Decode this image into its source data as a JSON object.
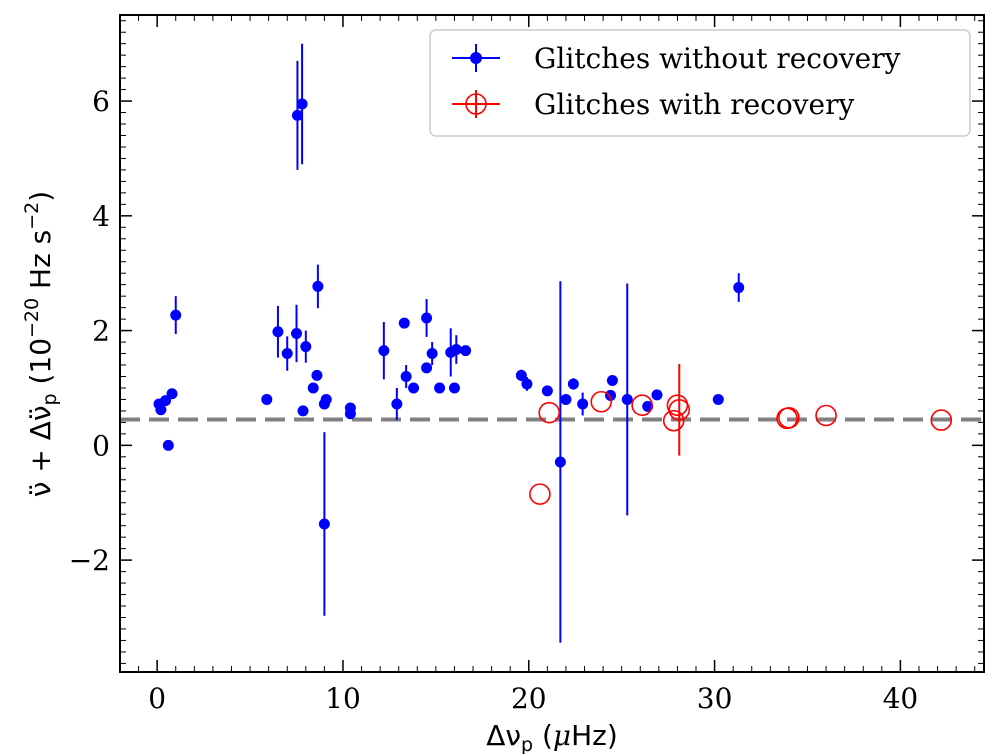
{
  "chart_data": {
    "type": "scatter",
    "title": "",
    "xlabel": "Δν_p (μHz)",
    "ylabel": "ν̈ + Δν̈_p (10^-20 Hz s^-2)",
    "xlim": [
      -2,
      44.5
    ],
    "ylim": [
      -3.95,
      7.5
    ],
    "x_ticks": [
      0,
      10,
      20,
      30,
      40
    ],
    "x_tick_labels": [
      "0",
      "10",
      "20",
      "30",
      "40"
    ],
    "y_ticks": [
      -2,
      0,
      2,
      4,
      6
    ],
    "y_tick_labels": [
      "−2",
      "0",
      "2",
      "4",
      "6"
    ],
    "reference_line": {
      "y": 0.45,
      "style": "dashed",
      "color": "#808080"
    },
    "legend": {
      "position": "top-right"
    },
    "series": [
      {
        "name": "Glitches without recovery",
        "color": "#0000ff",
        "marker": "filled-circle",
        "points": [
          {
            "x": 0.1,
            "y": 0.72,
            "err": 0
          },
          {
            "x": 0.2,
            "y": 0.62,
            "err": 0
          },
          {
            "x": 0.45,
            "y": 0.78,
            "err": 0
          },
          {
            "x": 0.6,
            "y": 0.0,
            "err": 0
          },
          {
            "x": 0.8,
            "y": 0.9,
            "err": 0
          },
          {
            "x": 1.0,
            "y": 2.27,
            "err": 0.33
          },
          {
            "x": 5.9,
            "y": 0.8,
            "err": 0
          },
          {
            "x": 6.5,
            "y": 1.98,
            "err": 0.45
          },
          {
            "x": 7.0,
            "y": 1.6,
            "err": 0.3
          },
          {
            "x": 7.5,
            "y": 1.95,
            "err": 0.5
          },
          {
            "x": 7.55,
            "y": 5.75,
            "err": 0.95
          },
          {
            "x": 7.8,
            "y": 5.95,
            "err": 1.05
          },
          {
            "x": 7.85,
            "y": 0.6,
            "err": 0
          },
          {
            "x": 8.0,
            "y": 1.72,
            "err": 0.28
          },
          {
            "x": 8.4,
            "y": 1.0,
            "err": 0
          },
          {
            "x": 8.6,
            "y": 1.22,
            "err": 0
          },
          {
            "x": 8.65,
            "y": 2.77,
            "err": 0.38
          },
          {
            "x": 9.0,
            "y": 0.72,
            "err": 0
          },
          {
            "x": 9.1,
            "y": 0.8,
            "err": 0
          },
          {
            "x": 9.0,
            "y": -1.37,
            "err": 1.6
          },
          {
            "x": 10.4,
            "y": 0.65,
            "err": 0
          },
          {
            "x": 10.4,
            "y": 0.55,
            "err": 0
          },
          {
            "x": 12.2,
            "y": 1.65,
            "err": 0.5
          },
          {
            "x": 12.9,
            "y": 0.72,
            "err": 0.28
          },
          {
            "x": 13.3,
            "y": 2.13,
            "err": 0
          },
          {
            "x": 13.4,
            "y": 1.2,
            "err": 0.2
          },
          {
            "x": 13.8,
            "y": 1.0,
            "err": 0
          },
          {
            "x": 14.5,
            "y": 2.22,
            "err": 0.33
          },
          {
            "x": 14.5,
            "y": 1.35,
            "err": 0
          },
          {
            "x": 14.8,
            "y": 1.6,
            "err": 0.2
          },
          {
            "x": 15.2,
            "y": 1.0,
            "err": 0
          },
          {
            "x": 15.8,
            "y": 1.62,
            "err": 0.42
          },
          {
            "x": 16.0,
            "y": 1.0,
            "err": 0
          },
          {
            "x": 16.1,
            "y": 1.67,
            "err": 0.25
          },
          {
            "x": 16.6,
            "y": 1.65,
            "err": 0
          },
          {
            "x": 19.6,
            "y": 1.22,
            "err": 0.1
          },
          {
            "x": 19.9,
            "y": 1.07,
            "err": 0.12
          },
          {
            "x": 21.0,
            "y": 0.95,
            "err": 0
          },
          {
            "x": 21.7,
            "y": -0.29,
            "err": 3.15
          },
          {
            "x": 22.0,
            "y": 0.8,
            "err": 0
          },
          {
            "x": 22.4,
            "y": 1.07,
            "err": 0.1
          },
          {
            "x": 22.9,
            "y": 0.72,
            "err": 0.2
          },
          {
            "x": 24.4,
            "y": 0.87,
            "err": 0
          },
          {
            "x": 24.5,
            "y": 1.13,
            "err": 0
          },
          {
            "x": 25.3,
            "y": 0.8,
            "err": 2.02
          },
          {
            "x": 26.4,
            "y": 0.68,
            "err": 0
          },
          {
            "x": 26.9,
            "y": 0.88,
            "err": 0
          },
          {
            "x": 30.2,
            "y": 0.8,
            "err": 0
          },
          {
            "x": 31.3,
            "y": 2.75,
            "err": 0.25
          }
        ]
      },
      {
        "name": "Glitches with recovery",
        "color": "#ff0000",
        "marker": "open-circle",
        "points": [
          {
            "x": 20.6,
            "y": -0.85,
            "err": 0
          },
          {
            "x": 21.1,
            "y": 0.57,
            "err": 0
          },
          {
            "x": 23.9,
            "y": 0.76,
            "err": 0
          },
          {
            "x": 26.1,
            "y": 0.7,
            "err": 0
          },
          {
            "x": 27.8,
            "y": 0.43,
            "err": 0
          },
          {
            "x": 28.0,
            "y": 0.7,
            "err": 0
          },
          {
            "x": 28.1,
            "y": 0.62,
            "err": 0.8
          },
          {
            "x": 33.9,
            "y": 0.47,
            "err": 0
          },
          {
            "x": 34.0,
            "y": 0.48,
            "err": 0
          },
          {
            "x": 36.0,
            "y": 0.52,
            "err": 0
          },
          {
            "x": 42.2,
            "y": 0.44,
            "err": 0
          }
        ]
      }
    ]
  }
}
